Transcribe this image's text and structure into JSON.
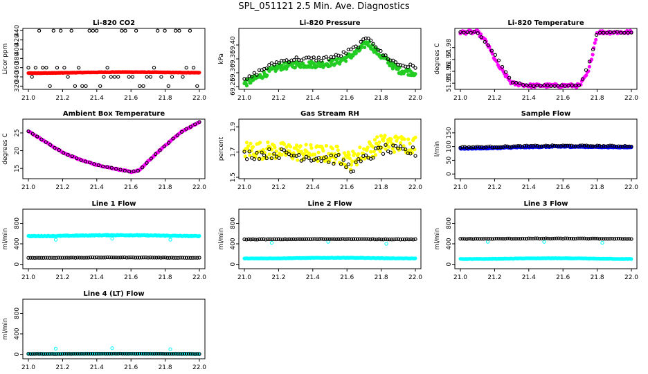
{
  "title": "SPL_051121  2.5 Min. Ave. Diagnostics",
  "colors": {
    "black": "#000000",
    "red": "#ff0000",
    "green": "#22cc22",
    "magenta": "#ff00ff",
    "yellow": "#ffff00",
    "blue": "#0000ff",
    "cyan": "#00ffff"
  },
  "chart_data": [
    {
      "id": "co2",
      "type": "scatter",
      "title": "Li-820 CO2",
      "ylabel": "Licor ppm",
      "xlim": [
        21.0,
        22.0
      ],
      "ylim": [
        316,
        442
      ],
      "xticks": [
        "21.0",
        "21.2",
        "21.4",
        "21.6",
        "21.8",
        "22.0"
      ],
      "yticks": [
        "320",
        "340",
        "360",
        "380",
        "400",
        "420",
        "440"
      ],
      "series": [
        {
          "name": "scatter",
          "color": "black",
          "kind": "scatter3",
          "levels": [
            320,
            340,
            360,
            440
          ]
        },
        {
          "name": "mean",
          "color": "red",
          "kind": "band",
          "y0": 349,
          "y1": 350,
          "half": 1.6,
          "noise": 0.4
        }
      ]
    },
    {
      "id": "pressure",
      "type": "scatter",
      "title": "Li-820 Pressure",
      "ylabel": "kPa",
      "xlim": [
        21.0,
        22.0
      ],
      "ylim": [
        69.245,
        69.455
      ],
      "xticks": [
        "21.0",
        "21.2",
        "21.4",
        "21.6",
        "21.8",
        "22.0"
      ],
      "yticks": [
        "69.25",
        "69.30",
        "69.35",
        "69.40"
      ],
      "series": [
        {
          "name": "green",
          "color": "green",
          "kind": "curve",
          "points": [
            [
              21.0,
              69.26
            ],
            [
              21.1,
              69.29
            ],
            [
              21.2,
              69.32
            ],
            [
              21.3,
              69.33
            ],
            [
              21.45,
              69.33
            ],
            [
              21.55,
              69.34
            ],
            [
              21.65,
              69.37
            ],
            [
              21.72,
              69.41
            ],
            [
              21.8,
              69.36
            ],
            [
              21.9,
              69.31
            ],
            [
              22.0,
              69.3
            ]
          ],
          "spread": 0.012,
          "n": 220
        },
        {
          "name": "black",
          "color": "black",
          "kind": "curve",
          "points": [
            [
              21.0,
              69.27
            ],
            [
              21.1,
              69.31
            ],
            [
              21.2,
              69.34
            ],
            [
              21.3,
              69.35
            ],
            [
              21.45,
              69.35
            ],
            [
              21.55,
              69.36
            ],
            [
              21.65,
              69.39
            ],
            [
              21.73,
              69.43
            ],
            [
              21.8,
              69.37
            ],
            [
              21.9,
              69.33
            ],
            [
              22.0,
              69.32
            ]
          ],
          "spread": 0.008,
          "n": 70
        }
      ]
    },
    {
      "id": "temp",
      "type": "scatter",
      "title": "Li-820 Temperature",
      "ylabel": "degrees C",
      "xlim": [
        21.0,
        22.0
      ],
      "ylim": [
        51.946,
        51.995
      ],
      "xticks": [
        "21.0",
        "21.2",
        "21.4",
        "21.6",
        "21.8",
        "22.0"
      ],
      "yticks": [
        "51.95",
        "51.96",
        "51.97",
        "51.98"
      ],
      "series": [
        {
          "name": "magenta",
          "color": "magenta",
          "kind": "curve",
          "points": [
            [
              21.0,
              51.993
            ],
            [
              21.1,
              51.993
            ],
            [
              21.15,
              51.985
            ],
            [
              21.22,
              51.965
            ],
            [
              21.3,
              51.95
            ],
            [
              21.4,
              51.948
            ],
            [
              21.6,
              51.948
            ],
            [
              21.7,
              51.948
            ],
            [
              21.75,
              51.96
            ],
            [
              21.8,
              51.993
            ],
            [
              22.0,
              51.993
            ]
          ],
          "spread": 0.0015,
          "n": 160
        },
        {
          "name": "black",
          "color": "black",
          "kind": "curve",
          "points": [
            [
              21.0,
              51.993
            ],
            [
              21.1,
              51.993
            ],
            [
              21.2,
              51.975
            ],
            [
              21.3,
              51.951
            ],
            [
              21.4,
              51.948
            ],
            [
              21.7,
              51.948
            ],
            [
              21.76,
              51.97
            ],
            [
              21.8,
              51.993
            ],
            [
              22.0,
              51.993
            ]
          ],
          "spread": 0.0005,
          "n": 50
        }
      ]
    },
    {
      "id": "ambient",
      "type": "scatter",
      "title": "Ambient Box Temperature",
      "ylabel": "degrees C",
      "xlim": [
        21.0,
        22.0
      ],
      "ylim": [
        12.5,
        28.5
      ],
      "xticks": [
        "21.0",
        "21.2",
        "21.4",
        "21.6",
        "21.8",
        "22.0"
      ],
      "yticks": [
        "15",
        "20",
        "25"
      ],
      "series": [
        {
          "name": "magenta",
          "color": "magenta",
          "kind": "curve",
          "points": [
            [
              21.0,
              25.5
            ],
            [
              21.1,
              22.5
            ],
            [
              21.2,
              19.5
            ],
            [
              21.3,
              17.5
            ],
            [
              21.4,
              16.0
            ],
            [
              21.5,
              15.0
            ],
            [
              21.6,
              14.0
            ],
            [
              21.65,
              14.5
            ],
            [
              21.7,
              17.0
            ],
            [
              21.8,
              21.5
            ],
            [
              21.9,
              25.5
            ],
            [
              22.0,
              28.0
            ]
          ],
          "spread": 0.15,
          "n": 200
        },
        {
          "name": "black",
          "color": "black",
          "kind": "curve",
          "points": [
            [
              21.0,
              25.5
            ],
            [
              21.1,
              22.5
            ],
            [
              21.2,
              19.5
            ],
            [
              21.3,
              17.5
            ],
            [
              21.4,
              16.0
            ],
            [
              21.5,
              15.0
            ],
            [
              21.6,
              14.0
            ],
            [
              21.65,
              14.5
            ],
            [
              21.7,
              17.0
            ],
            [
              21.8,
              21.5
            ],
            [
              21.9,
              25.5
            ],
            [
              22.0,
              28.0
            ]
          ],
          "spread": 0.1,
          "n": 40
        }
      ]
    },
    {
      "id": "rh",
      "type": "scatter",
      "title": "Gas Stream RH",
      "ylabel": "percent",
      "xlim": [
        21.0,
        22.0
      ],
      "ylim": [
        1.5,
        1.95
      ],
      "xticks": [
        "21.0",
        "21.2",
        "21.4",
        "21.6",
        "21.8",
        "22.0"
      ],
      "yticks": [
        "1.5",
        "1.7",
        "1.9"
      ],
      "series": [
        {
          "name": "yellow",
          "color": "yellow",
          "kind": "curve",
          "points": [
            [
              21.0,
              1.72
            ],
            [
              21.2,
              1.71
            ],
            [
              21.4,
              1.69
            ],
            [
              21.55,
              1.68
            ],
            [
              21.62,
              1.63
            ],
            [
              21.7,
              1.7
            ],
            [
              21.8,
              1.77
            ],
            [
              22.0,
              1.76
            ]
          ],
          "spread": 0.07,
          "n": 220
        },
        {
          "name": "black",
          "color": "black",
          "kind": "curve",
          "points": [
            [
              21.0,
              1.68
            ],
            [
              21.2,
              1.69
            ],
            [
              21.4,
              1.66
            ],
            [
              21.55,
              1.64
            ],
            [
              21.62,
              1.57
            ],
            [
              21.7,
              1.64
            ],
            [
              21.8,
              1.72
            ],
            [
              22.0,
              1.7
            ]
          ],
          "spread": 0.04,
          "n": 70
        }
      ]
    },
    {
      "id": "sample",
      "type": "scatter",
      "title": "Sample Flow",
      "ylabel": "l/min",
      "xlim": [
        21.0,
        22.0
      ],
      "ylim": [
        -12,
        195
      ],
      "xticks": [
        "21.0",
        "21.2",
        "21.4",
        "21.6",
        "21.8",
        "22.0"
      ],
      "yticks": [
        "0",
        "50",
        "100",
        "150"
      ],
      "series": [
        {
          "name": "blue",
          "color": "blue",
          "kind": "band",
          "y0": 95,
          "y1": 100,
          "half": 4,
          "noise": 2
        },
        {
          "name": "black",
          "color": "black",
          "kind": "band",
          "y0": 99,
          "y1": 103,
          "half": 3,
          "noise": 2,
          "step": 0.0125
        }
      ]
    },
    {
      "id": "line1",
      "type": "scatter",
      "title": "Line 1 Flow",
      "ylabel": "ml/min",
      "xlim": [
        21.0,
        22.0
      ],
      "ylim": [
        -60,
        1050
      ],
      "xticks": [
        "21.0",
        "21.2",
        "21.4",
        "21.6",
        "21.8",
        "22.0"
      ],
      "yticks": [
        "0",
        "400",
        "800"
      ],
      "series": [
        {
          "name": "cyan",
          "color": "cyan",
          "kind": "band",
          "y0": 560,
          "y1": 560,
          "half": 20,
          "noise": 8,
          "dips": [
            [
              21.16,
              480
            ],
            [
              21.49,
              500
            ],
            [
              21.83,
              480
            ]
          ]
        },
        {
          "name": "black",
          "color": "black",
          "kind": "band",
          "y0": 130,
          "y1": 130,
          "half": 6,
          "noise": 3,
          "step": 0.0125
        }
      ]
    },
    {
      "id": "line2",
      "type": "scatter",
      "title": "Line 2 Flow",
      "ylabel": "ml/min",
      "xlim": [
        21.0,
        22.0
      ],
      "ylim": [
        -60,
        1050
      ],
      "xticks": [
        "21.0",
        "21.2",
        "21.4",
        "21.6",
        "21.8",
        "22.0"
      ],
      "yticks": [
        "0",
        "400",
        "800"
      ],
      "series": [
        {
          "name": "cyan",
          "color": "cyan",
          "kind": "band",
          "y0": 120,
          "y1": 120,
          "half": 14,
          "noise": 4,
          "dips": [
            [
              21.16,
              420
            ],
            [
              21.49,
              440
            ],
            [
              21.83,
              400
            ]
          ]
        },
        {
          "name": "black",
          "color": "black",
          "kind": "band",
          "y0": 490,
          "y1": 490,
          "half": 6,
          "noise": 4,
          "step": 0.0125
        }
      ]
    },
    {
      "id": "line3",
      "type": "scatter",
      "title": "Line 3 Flow",
      "ylabel": "ml/min",
      "xlim": [
        21.0,
        22.0
      ],
      "ylim": [
        -60,
        1050
      ],
      "xticks": [
        "21.0",
        "21.2",
        "21.4",
        "21.6",
        "21.8",
        "22.0"
      ],
      "yticks": [
        "0",
        "400",
        "800"
      ],
      "series": [
        {
          "name": "cyan",
          "color": "cyan",
          "kind": "band",
          "y0": 110,
          "y1": 110,
          "half": 14,
          "noise": 4,
          "dips": [
            [
              21.16,
              440
            ],
            [
              21.49,
              440
            ],
            [
              21.83,
              420
            ]
          ]
        },
        {
          "name": "black",
          "color": "black",
          "kind": "band",
          "y0": 500,
          "y1": 500,
          "half": 6,
          "noise": 4,
          "step": 0.0125
        }
      ]
    },
    {
      "id": "line4",
      "type": "scatter",
      "title": "Line 4 (LT) Flow",
      "ylabel": "ml/min",
      "xlim": [
        21.0,
        22.0
      ],
      "ylim": [
        -60,
        1050
      ],
      "xticks": [
        "21.0",
        "21.2",
        "21.4",
        "21.6",
        "21.8",
        "22.0"
      ],
      "yticks": [
        "0",
        "400",
        "800"
      ],
      "series": [
        {
          "name": "cyan",
          "color": "cyan",
          "kind": "band",
          "y0": 10,
          "y1": 10,
          "half": 4,
          "noise": 2,
          "dips": [
            [
              21.16,
              110
            ],
            [
              21.49,
              120
            ],
            [
              21.83,
              100
            ]
          ]
        },
        {
          "name": "black",
          "color": "black",
          "kind": "band",
          "y0": 10,
          "y1": 10,
          "half": 4,
          "noise": 2,
          "step": 0.0125
        }
      ]
    }
  ]
}
